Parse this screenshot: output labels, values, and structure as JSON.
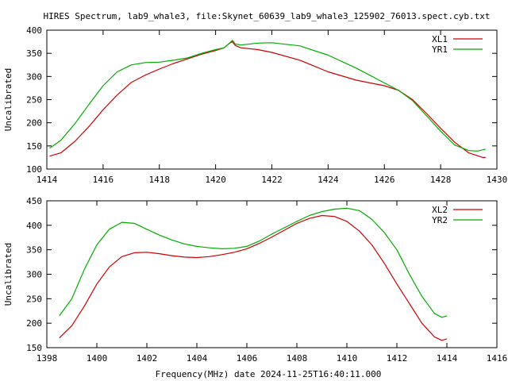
{
  "title": "HIRES Spectrum, lab9_whale3, file:Skynet_60639_lab9_whale3_125902_76013.spect.cyb.txt",
  "xlabel": "Frequency(MHz) date 2024-11-25T16:40:11.000",
  "colors": {
    "red": "#cc0000",
    "green": "#00aa00"
  },
  "chart_data": [
    {
      "type": "line",
      "ylabel": "Uncalibrated",
      "xlim": [
        1414,
        1430
      ],
      "ylim": [
        100,
        400
      ],
      "xticks": [
        1414,
        1416,
        1418,
        1420,
        1422,
        1424,
        1426,
        1428,
        1430
      ],
      "yticks": [
        100,
        150,
        200,
        250,
        300,
        350,
        400
      ],
      "legend": "top-right",
      "series": [
        {
          "name": "XL1",
          "color": "#cc0000",
          "points": [
            [
              1414.1,
              128
            ],
            [
              1414.5,
              135
            ],
            [
              1415.0,
              160
            ],
            [
              1415.5,
              192
            ],
            [
              1416.0,
              228
            ],
            [
              1416.5,
              260
            ],
            [
              1417.0,
              287
            ],
            [
              1417.5,
              303
            ],
            [
              1418.0,
              316
            ],
            [
              1418.5,
              328
            ],
            [
              1419.0,
              338
            ],
            [
              1419.5,
              348
            ],
            [
              1420.0,
              356
            ],
            [
              1420.3,
              362
            ],
            [
              1420.5,
              372
            ],
            [
              1420.6,
              375
            ],
            [
              1420.7,
              367
            ],
            [
              1420.9,
              362
            ],
            [
              1421.5,
              358
            ],
            [
              1422.0,
              352
            ],
            [
              1423.0,
              335
            ],
            [
              1424.0,
              310
            ],
            [
              1425.0,
              292
            ],
            [
              1426.0,
              280
            ],
            [
              1426.5,
              270
            ],
            [
              1427.0,
              250
            ],
            [
              1427.5,
              220
            ],
            [
              1428.0,
              188
            ],
            [
              1428.5,
              158
            ],
            [
              1429.0,
              135
            ],
            [
              1429.5,
              125
            ],
            [
              1429.6,
              125
            ]
          ]
        },
        {
          "name": "YR1",
          "color": "#00aa00",
          "points": [
            [
              1414.1,
              145
            ],
            [
              1414.5,
              162
            ],
            [
              1415.0,
              198
            ],
            [
              1415.5,
              240
            ],
            [
              1416.0,
              280
            ],
            [
              1416.5,
              310
            ],
            [
              1417.0,
              325
            ],
            [
              1417.5,
              330
            ],
            [
              1418.0,
              331
            ],
            [
              1418.5,
              335
            ],
            [
              1419.0,
              340
            ],
            [
              1419.5,
              350
            ],
            [
              1420.0,
              358
            ],
            [
              1420.3,
              362
            ],
            [
              1420.5,
              372
            ],
            [
              1420.6,
              378
            ],
            [
              1420.7,
              370
            ],
            [
              1420.9,
              368
            ],
            [
              1421.5,
              372
            ],
            [
              1422.0,
              373
            ],
            [
              1423.0,
              366
            ],
            [
              1424.0,
              346
            ],
            [
              1425.0,
              318
            ],
            [
              1426.0,
              286
            ],
            [
              1426.5,
              270
            ],
            [
              1427.0,
              248
            ],
            [
              1427.5,
              215
            ],
            [
              1428.0,
              182
            ],
            [
              1428.5,
              152
            ],
            [
              1429.0,
              140
            ],
            [
              1429.3,
              139
            ],
            [
              1429.6,
              143
            ]
          ]
        }
      ]
    },
    {
      "type": "line",
      "ylabel": "Uncalibrated",
      "xlim": [
        1398,
        1416
      ],
      "ylim": [
        150,
        450
      ],
      "xticks": [
        1398,
        1400,
        1402,
        1404,
        1406,
        1408,
        1410,
        1412,
        1414,
        1416
      ],
      "yticks": [
        150,
        200,
        250,
        300,
        350,
        400,
        450
      ],
      "legend": "top-right",
      "series": [
        {
          "name": "XL2",
          "color": "#cc0000",
          "points": [
            [
              1398.5,
              170
            ],
            [
              1399.0,
              195
            ],
            [
              1399.5,
              235
            ],
            [
              1400.0,
              280
            ],
            [
              1400.5,
              315
            ],
            [
              1401.0,
              336
            ],
            [
              1401.5,
              344
            ],
            [
              1402.0,
              345
            ],
            [
              1402.5,
              342
            ],
            [
              1403.0,
              338
            ],
            [
              1403.5,
              335
            ],
            [
              1404.0,
              334
            ],
            [
              1404.5,
              336
            ],
            [
              1405.0,
              340
            ],
            [
              1405.5,
              345
            ],
            [
              1406.0,
              352
            ],
            [
              1406.5,
              363
            ],
            [
              1407.0,
              376
            ],
            [
              1407.5,
              390
            ],
            [
              1408.0,
              404
            ],
            [
              1408.5,
              414
            ],
            [
              1409.0,
              420
            ],
            [
              1409.5,
              418
            ],
            [
              1410.0,
              408
            ],
            [
              1410.5,
              388
            ],
            [
              1411.0,
              360
            ],
            [
              1411.5,
              322
            ],
            [
              1412.0,
              280
            ],
            [
              1412.5,
              240
            ],
            [
              1413.0,
              200
            ],
            [
              1413.5,
              172
            ],
            [
              1413.8,
              165
            ],
            [
              1414.0,
              168
            ]
          ]
        },
        {
          "name": "YR2",
          "color": "#00aa00",
          "points": [
            [
              1398.5,
              215
            ],
            [
              1399.0,
              250
            ],
            [
              1399.5,
              310
            ],
            [
              1400.0,
              360
            ],
            [
              1400.5,
              392
            ],
            [
              1401.0,
              406
            ],
            [
              1401.5,
              404
            ],
            [
              1402.0,
              392
            ],
            [
              1402.5,
              380
            ],
            [
              1403.0,
              370
            ],
            [
              1403.5,
              362
            ],
            [
              1404.0,
              357
            ],
            [
              1404.5,
              354
            ],
            [
              1405.0,
              352
            ],
            [
              1405.5,
              353
            ],
            [
              1406.0,
              357
            ],
            [
              1406.5,
              368
            ],
            [
              1407.0,
              382
            ],
            [
              1407.5,
              395
            ],
            [
              1408.0,
              408
            ],
            [
              1408.5,
              420
            ],
            [
              1409.0,
              428
            ],
            [
              1409.5,
              433
            ],
            [
              1410.0,
              435
            ],
            [
              1410.5,
              430
            ],
            [
              1411.0,
              412
            ],
            [
              1411.5,
              385
            ],
            [
              1412.0,
              350
            ],
            [
              1412.5,
              300
            ],
            [
              1413.0,
              255
            ],
            [
              1413.5,
              220
            ],
            [
              1413.8,
              212
            ],
            [
              1414.0,
              215
            ]
          ]
        }
      ]
    }
  ]
}
